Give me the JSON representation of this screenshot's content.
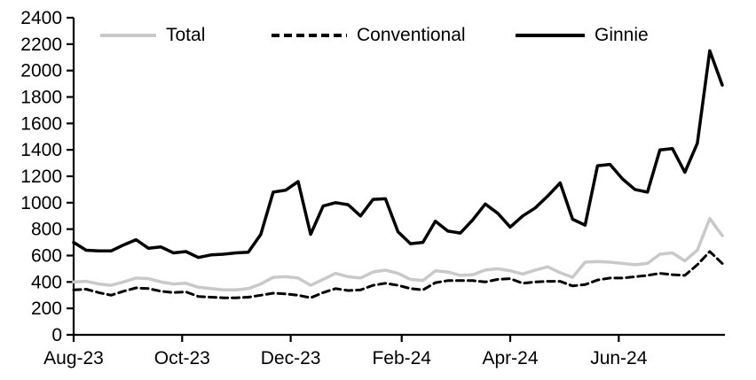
{
  "chart_data": {
    "type": "line",
    "title": "",
    "xlabel": "",
    "ylabel": "",
    "grid": false,
    "legend_position": "top",
    "axis_color": "#000000",
    "background_color": "#ffffff",
    "y_axis": {
      "min": 0,
      "max": 2400,
      "step": 200,
      "tick_labels": [
        "0",
        "200",
        "400",
        "600",
        "800",
        "1000",
        "1200",
        "1400",
        "1600",
        "1800",
        "2000",
        "2200",
        "2400"
      ]
    },
    "x_axis": {
      "tick_labels": [
        "Aug-23",
        "Oct-23",
        "Dec-23",
        "Feb-24",
        "Apr-24",
        "Jun-24"
      ],
      "tick_week_positions": [
        0,
        8.7,
        17.4,
        26.3,
        35.0,
        43.7
      ],
      "total_weeks": 52,
      "frequency": "weekly"
    },
    "series": [
      {
        "name": "Total",
        "color": "#c9c9c9",
        "style": "solid",
        "width": 3.5,
        "values": [
          400,
          405,
          385,
          375,
          400,
          430,
          425,
          400,
          385,
          390,
          360,
          350,
          340,
          340,
          350,
          385,
          435,
          440,
          430,
          375,
          420,
          465,
          440,
          430,
          475,
          490,
          465,
          420,
          410,
          485,
          475,
          450,
          455,
          490,
          500,
          485,
          460,
          490,
          515,
          470,
          435,
          550,
          555,
          550,
          540,
          530,
          540,
          610,
          620,
          560,
          640,
          880,
          750
        ]
      },
      {
        "name": "Conventional",
        "color": "#000000",
        "style": "dashed",
        "width": 3,
        "values": [
          340,
          345,
          320,
          300,
          330,
          355,
          350,
          330,
          320,
          325,
          290,
          285,
          280,
          280,
          285,
          300,
          315,
          310,
          300,
          280,
          320,
          350,
          335,
          340,
          375,
          390,
          375,
          350,
          340,
          395,
          410,
          410,
          410,
          400,
          420,
          425,
          390,
          400,
          405,
          405,
          370,
          380,
          415,
          430,
          430,
          440,
          450,
          465,
          455,
          450,
          530,
          630,
          540
        ]
      },
      {
        "name": "Ginnie",
        "color": "#000000",
        "style": "solid",
        "width": 3.5,
        "values": [
          700,
          640,
          635,
          635,
          680,
          720,
          655,
          665,
          620,
          630,
          585,
          605,
          610,
          620,
          625,
          760,
          1080,
          1095,
          1160,
          760,
          975,
          1000,
          985,
          900,
          1025,
          1030,
          780,
          690,
          700,
          860,
          785,
          770,
          870,
          990,
          920,
          815,
          900,
          960,
          1050,
          1150,
          875,
          830,
          1280,
          1290,
          1180,
          1100,
          1080,
          1400,
          1410,
          1230,
          1450,
          2150,
          1890
        ]
      }
    ]
  }
}
